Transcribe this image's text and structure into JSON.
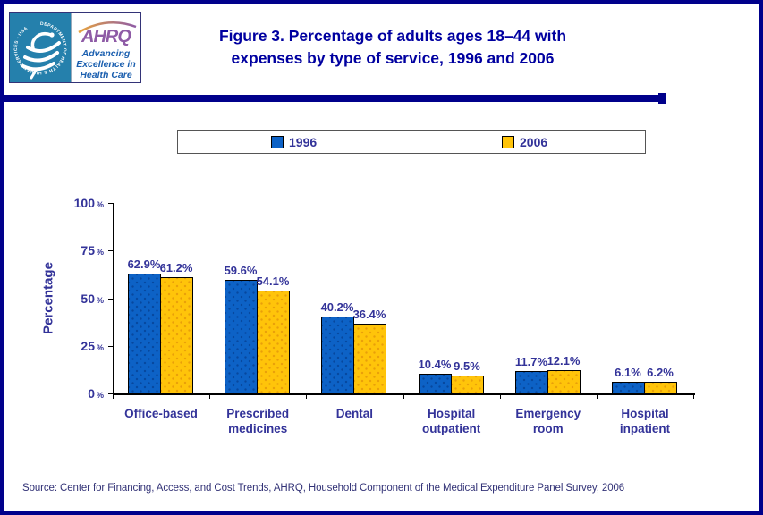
{
  "header": {
    "logo": {
      "hhs_ring_text": "DEPARTMENT OF HEALTH & HUMAN SERVICES • USA",
      "ahrq_acronym": "AHRQ",
      "ahrq_tagline_line1": "Advancing",
      "ahrq_tagline_line2": "Excellence in",
      "ahrq_tagline_line3": "Health Care",
      "hhs_bg_color": "#2580AC",
      "ahrq_purple": "#8E5BA6",
      "tagline_blue": "#1B5FAF"
    },
    "title_line1": "Figure 3. Percentage of adults ages 18–44 with",
    "title_line2": "expenses by type of service, 1996 and 2006",
    "title_color": "#0000A0"
  },
  "legend": {
    "items": [
      {
        "label": "1996",
        "color": "#0D62C6"
      },
      {
        "label": "2006",
        "color": "#FFC40A"
      }
    ]
  },
  "chart_data": {
    "type": "bar",
    "title": "Figure 3. Percentage of adults ages 18–44 with expenses by type of service, 1996 and 2006",
    "categories": [
      "Office-based",
      "Prescribed medicines",
      "Dental",
      "Hospital outpatient",
      "Emergency room",
      "Hospital inpatient"
    ],
    "series": [
      {
        "name": "1996",
        "color": "#0D62C6",
        "dot_color": "rgba(0,40,110,0.45)",
        "values": [
          62.9,
          59.6,
          40.2,
          10.4,
          11.7,
          6.1
        ]
      },
      {
        "name": "2006",
        "color": "#FFC40A",
        "dot_color": "rgba(215,130,10,0.55)",
        "values": [
          61.2,
          54.1,
          36.4,
          9.5,
          12.1,
          6.2
        ]
      }
    ],
    "ylabel": "Percentage",
    "xlabel": "",
    "ylim": [
      0,
      100
    ],
    "yticks": [
      0,
      25,
      50,
      75,
      100
    ],
    "ytick_suffix": "%",
    "value_suffix": "%",
    "grid": false,
    "legend_position": "top",
    "label_color": "#333399"
  },
  "footer": {
    "source": "Source: Center for Financing, Access, and Cost Trends, AHRQ, Household Component of the Medical Expenditure Panel Survey, 2006"
  }
}
